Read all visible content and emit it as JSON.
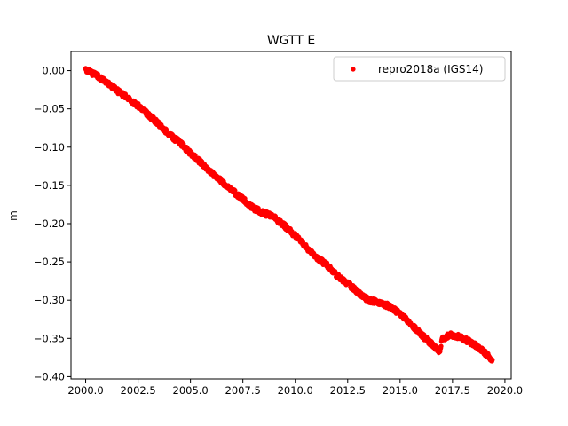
{
  "chart_data": {
    "type": "scatter",
    "title": "WGTT E",
    "xlabel": "",
    "ylabel": "m",
    "xlim": [
      1999.3,
      2020.3
    ],
    "ylim": [
      -0.403,
      0.025
    ],
    "xticks": [
      2000.0,
      2002.5,
      2005.0,
      2007.5,
      2010.0,
      2012.5,
      2015.0,
      2017.5,
      2020.0
    ],
    "xtick_labels": [
      "2000.0",
      "2002.5",
      "2005.0",
      "2007.5",
      "2010.0",
      "2012.5",
      "2015.0",
      "2017.5",
      "2020.0"
    ],
    "yticks": [
      0.0,
      -0.05,
      -0.1,
      -0.15,
      -0.2,
      -0.25,
      -0.3,
      -0.35,
      -0.4
    ],
    "ytick_labels": [
      "0.00",
      "−0.05",
      "−0.10",
      "−0.15",
      "−0.20",
      "−0.25",
      "−0.30",
      "−0.35",
      "−0.40"
    ],
    "grid": false,
    "legend_position": "top-right",
    "series": [
      {
        "name": "repro2018a (IGS14)",
        "color": "#ff0000",
        "marker": "point",
        "x": [
          2000.0,
          2000.3,
          2000.6,
          2001.0,
          2001.5,
          2002.0,
          2002.5,
          2003.0,
          2003.5,
          2004.0,
          2004.5,
          2005.0,
          2005.5,
          2006.0,
          2006.5,
          2007.0,
          2007.5,
          2008.0,
          2008.5,
          2009.0,
          2009.5,
          2010.0,
          2010.5,
          2011.0,
          2011.5,
          2012.0,
          2012.5,
          2013.0,
          2013.5,
          2014.0,
          2014.5,
          2015.0,
          2015.5,
          2016.0,
          2016.5,
          2016.9,
          2017.0,
          2017.3,
          2017.6,
          2018.0,
          2018.5,
          2019.0,
          2019.4
        ],
        "y": [
          0.002,
          -0.003,
          -0.008,
          -0.016,
          -0.026,
          -0.036,
          -0.046,
          -0.058,
          -0.07,
          -0.084,
          -0.094,
          -0.108,
          -0.12,
          -0.133,
          -0.145,
          -0.157,
          -0.168,
          -0.18,
          -0.186,
          -0.192,
          -0.203,
          -0.216,
          -0.23,
          -0.244,
          -0.254,
          -0.268,
          -0.278,
          -0.29,
          -0.3,
          -0.303,
          -0.308,
          -0.318,
          -0.33,
          -0.345,
          -0.357,
          -0.367,
          -0.352,
          -0.346,
          -0.346,
          -0.35,
          -0.357,
          -0.368,
          -0.378
        ]
      }
    ]
  }
}
